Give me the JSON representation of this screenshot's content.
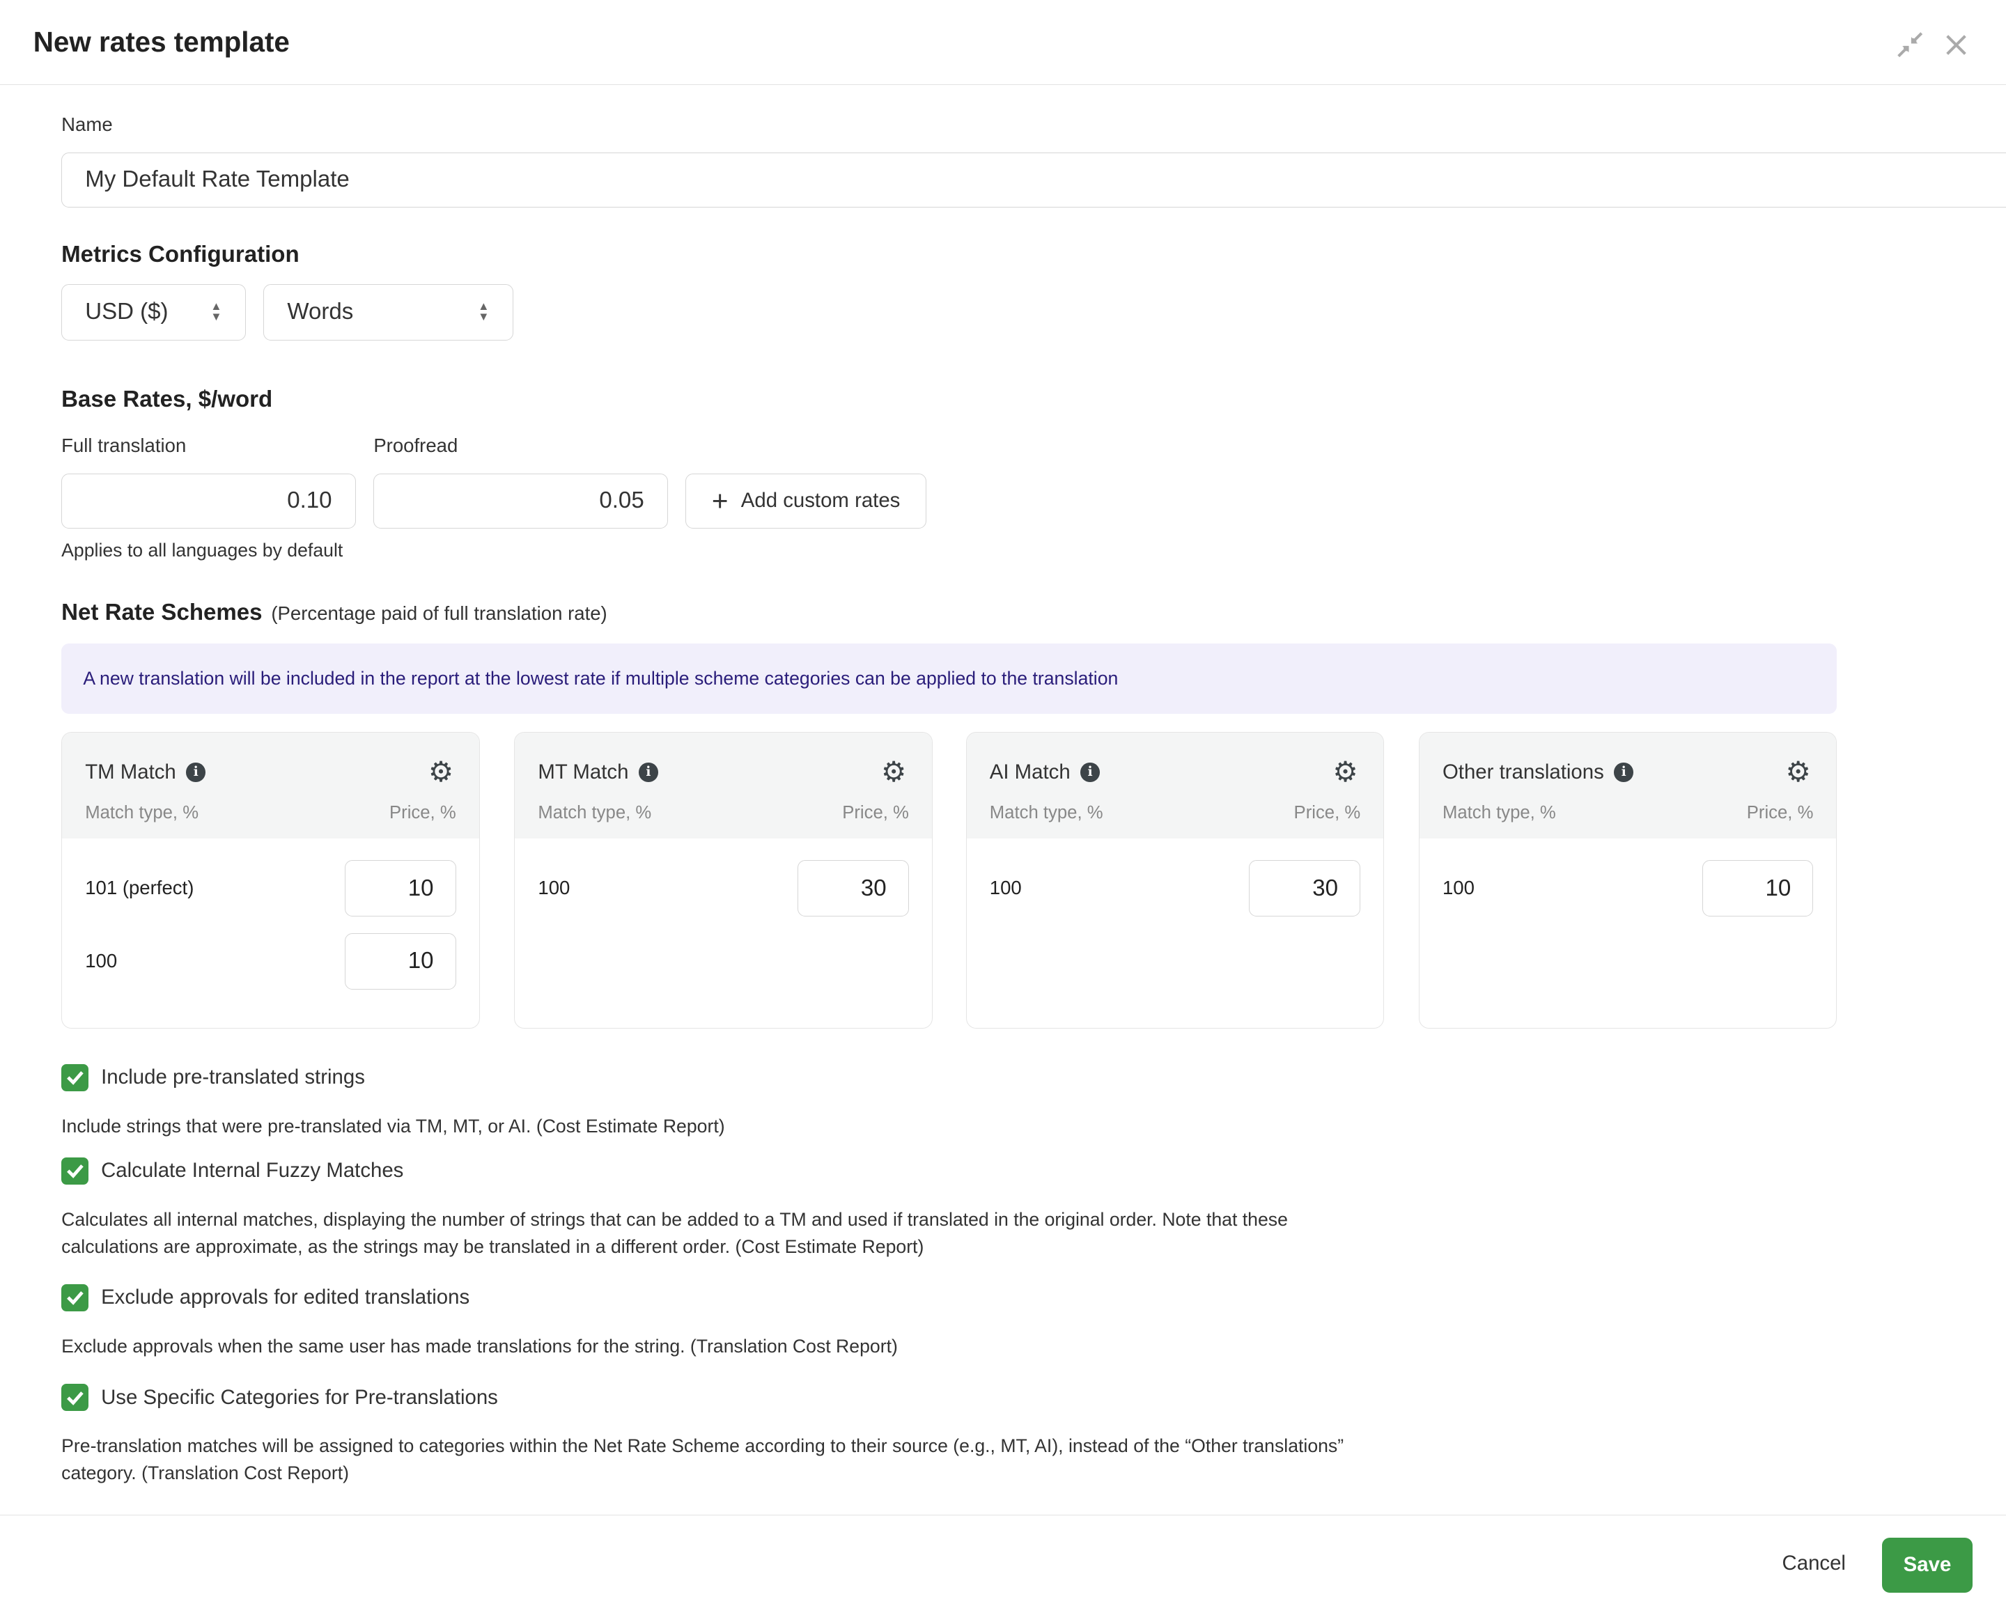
{
  "dialog": {
    "title": "New rates template",
    "icons": [
      "collapse-icon",
      "close-icon"
    ]
  },
  "name": {
    "label": "Name",
    "value": "My Default Rate Template"
  },
  "metrics": {
    "title": "Metrics Configuration",
    "currency": "USD ($)",
    "unit": "Words"
  },
  "base_rates": {
    "title": "Base Rates, $/word",
    "full_label": "Full translation",
    "full_value": "0.10",
    "proof_label": "Proofread",
    "proof_value": "0.05",
    "add_custom": "Add custom rates",
    "hint": "Applies to all languages by default"
  },
  "net": {
    "title": "Net Rate Schemes",
    "subtitle": "(Percentage paid of full translation rate)",
    "notice": "A new translation will be included in the report at the lowest rate if multiple scheme categories can be applied to the translation",
    "cards": [
      {
        "title": "TM Match",
        "col1": "Match type, %",
        "col2": "Price, %",
        "rows": [
          {
            "match": "101 (perfect)",
            "price": "10"
          },
          {
            "match": "100",
            "price": "10"
          }
        ]
      },
      {
        "title": "MT Match",
        "col1": "Match type, %",
        "col2": "Price, %",
        "rows": [
          {
            "match": "100",
            "price": "30"
          }
        ]
      },
      {
        "title": "AI Match",
        "col1": "Match type, %",
        "col2": "Price, %",
        "rows": [
          {
            "match": "100",
            "price": "30"
          }
        ]
      },
      {
        "title": "Other translations",
        "col1": "Match type, %",
        "col2": "Price, %",
        "rows": [
          {
            "match": "100",
            "price": "10"
          }
        ]
      }
    ]
  },
  "options": [
    {
      "label": "Include pre-translated strings",
      "checked": true,
      "desc": "Include strings that were pre-translated via TM, MT, or AI. (Cost Estimate Report)"
    },
    {
      "label": "Calculate Internal Fuzzy Matches",
      "checked": true,
      "desc": "Calculates all internal matches, displaying the number of strings that can be added to a TM and used if translated in the original order. Note that these calculations are approximate, as the strings may be translated in a different order. (Cost Estimate Report)"
    },
    {
      "label": "Exclude approvals for edited translations",
      "checked": true,
      "desc": "Exclude approvals when the same user has made translations for the string. (Translation Cost Report)"
    },
    {
      "label": "Use Specific Categories for Pre-translations",
      "checked": true,
      "desc": "Pre-translation matches will be assigned to categories within the Net Rate Scheme according to their source (e.g., MT, AI), instead of the “Other translations” category. (Translation Cost Report)"
    }
  ],
  "footer": {
    "cancel": "Cancel",
    "save": "Save"
  },
  "colors": {
    "accent": "#3c9a46",
    "notice_bg": "#f1effb",
    "notice_text": "#2a1d7a"
  }
}
